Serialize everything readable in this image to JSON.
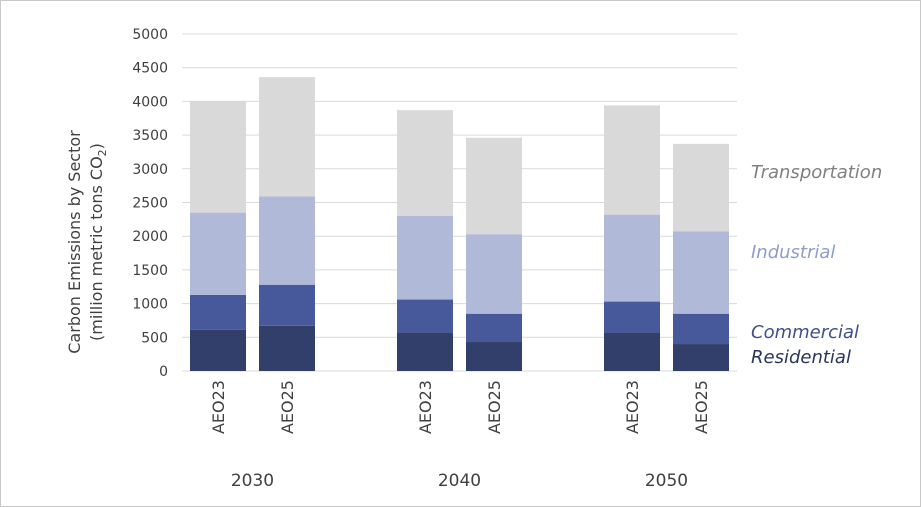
{
  "chart_data": {
    "type": "bar",
    "stacked": true,
    "ylabel_line1": "Carbon Emissions by Sector",
    "ylabel_line2_prefix": "(million metric tons CO",
    "ylabel_subscript": "2",
    "ylabel_line2_suffix": ")",
    "ylim": [
      0,
      5000
    ],
    "yticks": [
      0,
      500,
      1000,
      1500,
      2000,
      2500,
      3000,
      3500,
      4000,
      4500,
      5000
    ],
    "grid": true,
    "legend_position": "right",
    "groups": [
      "2030",
      "2040",
      "2050"
    ],
    "categories": [
      "AEO23",
      "AEO25",
      "AEO23",
      "AEO25",
      "AEO23",
      "AEO25"
    ],
    "group_of_category": [
      0,
      0,
      1,
      1,
      2,
      2
    ],
    "series": [
      {
        "name": "Residential",
        "color": "#333f6b",
        "values": [
          610,
          670,
          570,
          430,
          570,
          400
        ]
      },
      {
        "name": "Commercial",
        "color": "#47599a",
        "values": [
          520,
          610,
          490,
          420,
          460,
          450
        ]
      },
      {
        "name": "Industrial",
        "color": "#b0b9d8",
        "values": [
          1220,
          1310,
          1240,
          1180,
          1290,
          1220
        ]
      },
      {
        "name": "Transportation",
        "color": "#d9d9d9",
        "values": [
          1650,
          1770,
          1570,
          1430,
          1620,
          1300
        ]
      }
    ],
    "legend_colors": {
      "Residential": "#2a3560",
      "Commercial": "#3e4f8c",
      "Industrial": "#8f9dcc",
      "Transportation": "#808080"
    }
  }
}
